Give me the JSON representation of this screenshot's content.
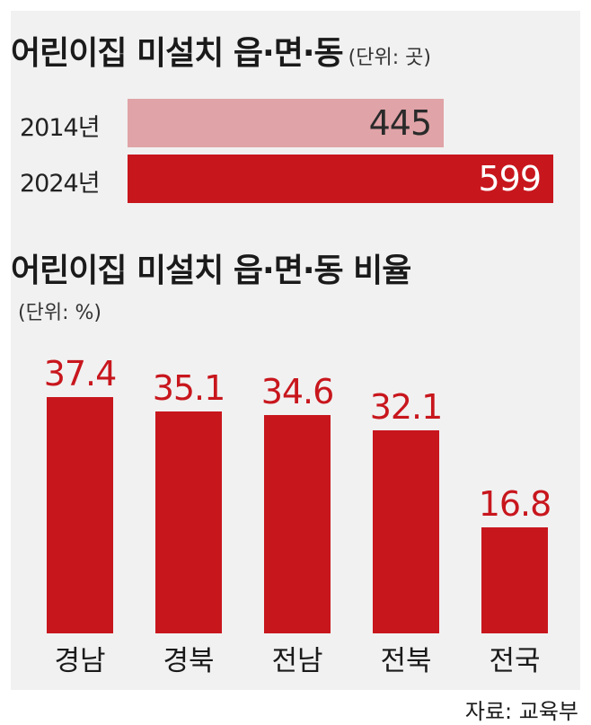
{
  "colors": {
    "panel_bg": "#f1f1f1",
    "accent_red": "#c8161d",
    "pale_red": "#e0a3a7"
  },
  "top_chart": {
    "title": "어린이집 미설치 읍·면·동",
    "unit": "(단위: 곳)"
  },
  "bottom_chart": {
    "title": "어린이집 미설치 읍·면·동 비율",
    "unit": "(단위: %)"
  },
  "source": "자료: 교육부",
  "chart_data": [
    {
      "type": "bar",
      "orientation": "horizontal",
      "title": "어린이집 미설치 읍·면·동",
      "unit": "(단위: 곳)",
      "categories": [
        "2014년",
        "2024년"
      ],
      "values": [
        445,
        599
      ],
      "value_labels": [
        "445",
        "599"
      ],
      "bar_colors": [
        "#e0a3a7",
        "#c8161d"
      ],
      "xlim": [
        0,
        599
      ],
      "grid": false
    },
    {
      "type": "bar",
      "orientation": "vertical",
      "title": "어린이집 미설치 읍·면·동 비율",
      "unit": "(단위: %)",
      "categories": [
        "경남",
        "경북",
        "전남",
        "전북",
        "전국"
      ],
      "values": [
        37.4,
        35.1,
        34.6,
        32.1,
        16.8
      ],
      "value_labels": [
        "37.4",
        "35.1",
        "34.6",
        "32.1",
        "16.8"
      ],
      "bar_color": "#c8161d",
      "ylim": [
        0,
        37.4
      ],
      "grid": false
    }
  ]
}
